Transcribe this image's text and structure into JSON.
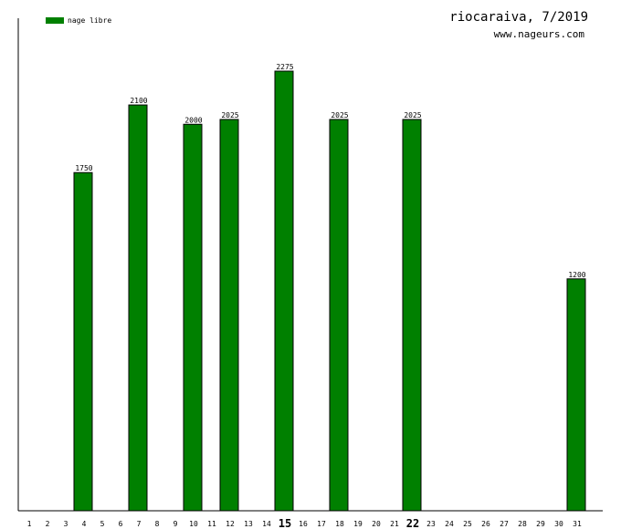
{
  "header": {
    "title": "riocaraiva, 7/2019",
    "website": "www.nageurs.com"
  },
  "legend": {
    "items": [
      {
        "label": "nage libre",
        "color": "#008000"
      }
    ]
  },
  "chart_data": {
    "type": "bar",
    "title": "riocaraiva, 7/2019",
    "xlabel": "",
    "ylabel": "",
    "categories": [
      "1",
      "2",
      "3",
      "4",
      "5",
      "6",
      "7",
      "8",
      "9",
      "10",
      "11",
      "12",
      "13",
      "14",
      "15",
      "16",
      "17",
      "18",
      "19",
      "20",
      "21",
      "22",
      "23",
      "24",
      "25",
      "26",
      "27",
      "28",
      "29",
      "30",
      "31"
    ],
    "highlighted_ticks": [
      "15",
      "22"
    ],
    "series": [
      {
        "name": "nage libre",
        "color": "#008000",
        "values": [
          0,
          0,
          0,
          1750,
          0,
          0,
          2100,
          0,
          0,
          2000,
          0,
          2025,
          0,
          0,
          2275,
          0,
          0,
          2025,
          0,
          0,
          0,
          2025,
          0,
          0,
          0,
          0,
          0,
          0,
          0,
          0,
          1200
        ]
      }
    ],
    "ylim": [
      0,
      2550
    ],
    "grid": false,
    "legend_position": "top-left"
  }
}
